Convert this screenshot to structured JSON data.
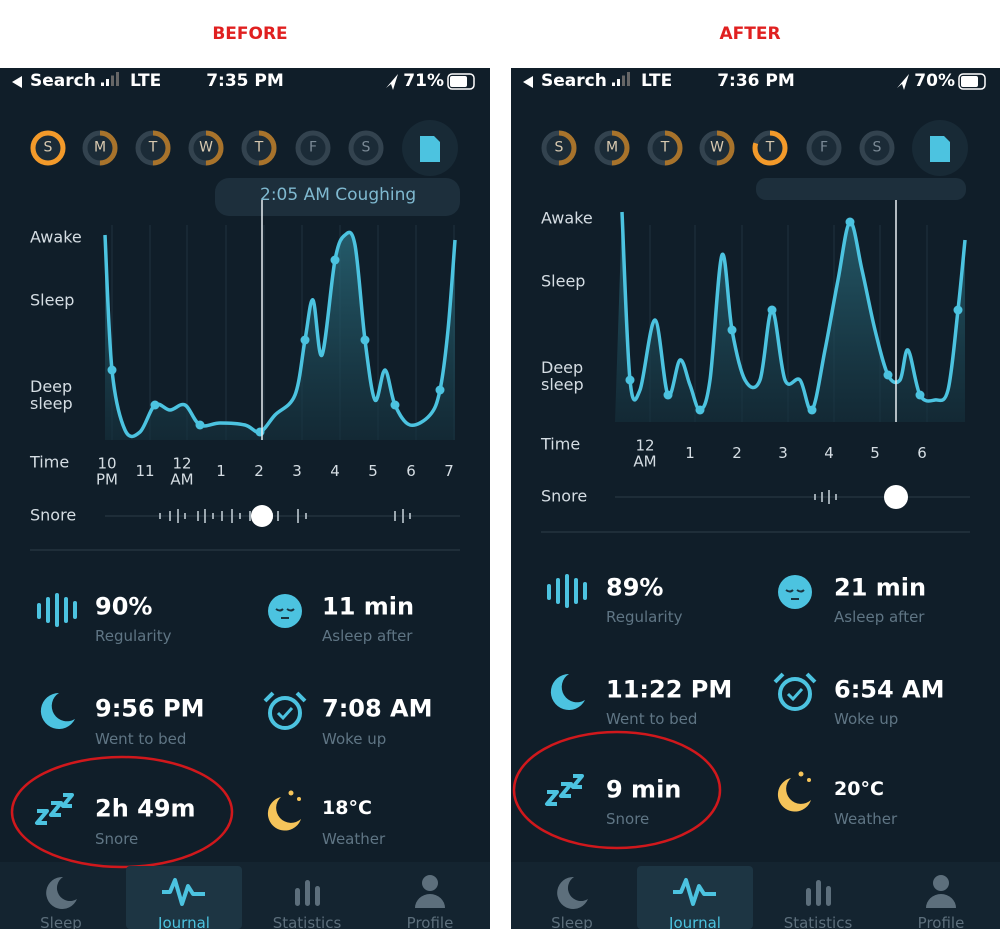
{
  "labels": {
    "before": "BEFORE",
    "after": "AFTER"
  },
  "panels": [
    {
      "status": {
        "carrier": "Search",
        "network": "LTE",
        "time": "7:35 PM",
        "battery": "71%"
      },
      "days": [
        "S",
        "M",
        "T",
        "W",
        "T",
        "F",
        "S"
      ],
      "tooltip": "2:05 AM Coughing",
      "y_labels": [
        "Awake",
        "Sleep",
        "Deep sleep"
      ],
      "time_label": "Time",
      "x_labels": [
        "10 PM",
        "11",
        "12 AM",
        "1",
        "2",
        "3",
        "4",
        "5",
        "6",
        "7"
      ],
      "snore_label": "Snore",
      "stats": [
        {
          "value": "90%",
          "label": "Regularity"
        },
        {
          "value": "11 min",
          "label": "Asleep after"
        },
        {
          "value": "9:56 PM",
          "label": "Went to bed"
        },
        {
          "value": "7:08 AM",
          "label": "Woke up"
        },
        {
          "value": "2h 49m",
          "label": "Snore"
        },
        {
          "value": "18°C",
          "label": "Weather"
        }
      ],
      "nav": [
        "Sleep",
        "Journal",
        "Statistics",
        "Profile"
      ]
    },
    {
      "status": {
        "carrier": "Search",
        "network": "LTE",
        "time": "7:36 PM",
        "battery": "70%"
      },
      "days": [
        "S",
        "M",
        "T",
        "W",
        "T",
        "F",
        "S"
      ],
      "y_labels": [
        "Awake",
        "Sleep",
        "Deep sleep"
      ],
      "time_label": "Time",
      "x_labels": [
        "12 AM",
        "1",
        "2",
        "3",
        "4",
        "5",
        "6"
      ],
      "snore_label": "Snore",
      "stats": [
        {
          "value": "89%",
          "label": "Regularity"
        },
        {
          "value": "21 min",
          "label": "Asleep after"
        },
        {
          "value": "11:22 PM",
          "label": "Went to bed"
        },
        {
          "value": "6:54 AM",
          "label": "Woke up"
        },
        {
          "value": "9 min",
          "label": "Snore"
        },
        {
          "value": "20°C",
          "label": "Weather"
        }
      ],
      "nav": [
        "Sleep",
        "Journal",
        "Statistics",
        "Profile"
      ]
    }
  ]
}
